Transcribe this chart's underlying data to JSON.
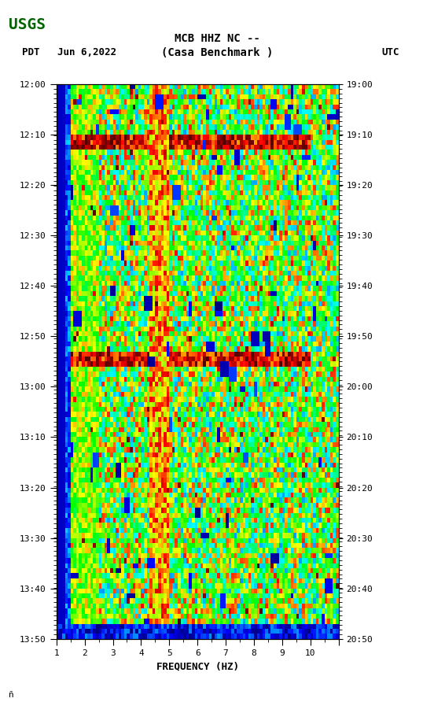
{
  "title_line1": "MCB HHZ NC --",
  "title_line2": "(Casa Benchmark )",
  "left_label": "PDT   Jun 6,2022",
  "right_label": "UTC",
  "freq_min": 0,
  "freq_max": 10,
  "freq_label": "FREQUENCY (HZ)",
  "time_left_start": "12:00",
  "time_left_end": "13:50",
  "time_right_start": "19:00",
  "time_right_end": "20:50",
  "left_yticks": [
    "12:00",
    "12:10",
    "12:20",
    "12:30",
    "12:40",
    "12:50",
    "13:00",
    "13:10",
    "13:20",
    "13:30",
    "13:40",
    "13:50"
  ],
  "right_yticks": [
    "19:00",
    "19:10",
    "19:20",
    "19:30",
    "19:40",
    "19:50",
    "20:00",
    "20:10",
    "20:20",
    "20:30",
    "20:40",
    "20:50"
  ],
  "bg_color": "#ffffff",
  "spectrogram_bg": "#008080",
  "left_strip_color": "#00008B",
  "bottom_strip_color": "#8B0000",
  "fig_width": 5.52,
  "fig_height": 8.92,
  "dpi": 100,
  "n_freq_bins": 100,
  "n_time_bins": 110,
  "seed": 42
}
